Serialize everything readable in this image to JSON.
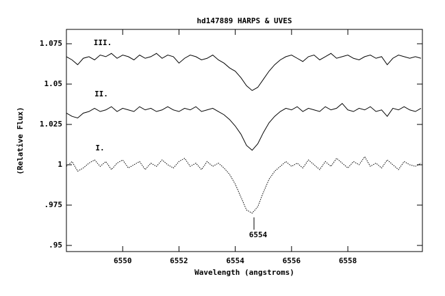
{
  "chart_data": {
    "type": "line",
    "title": "hd147889 HARPS & UVES",
    "x_label": "Wavelength (angstroms)",
    "y_label": "(Relative Flux)",
    "annotation": "6554",
    "x": [
      6548.0,
      6548.2,
      6548.4,
      6548.6,
      6548.8,
      6549.0,
      6549.2,
      6549.4,
      6549.6,
      6549.8,
      6550.0,
      6550.2,
      6550.4,
      6550.6,
      6550.8,
      6551.0,
      6551.2,
      6551.4,
      6551.6,
      6551.8,
      6552.0,
      6552.2,
      6552.4,
      6552.6,
      6552.8,
      6553.0,
      6553.2,
      6553.4,
      6553.6,
      6553.8,
      6554.0,
      6554.2,
      6554.4,
      6554.6,
      6554.8,
      6555.0,
      6555.2,
      6555.4,
      6555.6,
      6555.8,
      6556.0,
      6556.2,
      6556.4,
      6556.6,
      6556.8,
      6557.0,
      6557.2,
      6557.4,
      6557.6,
      6557.8,
      6558.0,
      6558.2,
      6558.4,
      6558.6,
      6558.8,
      6559.0,
      6559.2,
      6559.4,
      6559.6,
      6559.8,
      6560.0,
      6560.2,
      6560.4,
      6560.6
    ],
    "series": [
      {
        "name": "III.",
        "color": "#000000",
        "linestyle": "solid",
        "values": [
          1.067,
          1.065,
          1.062,
          1.066,
          1.067,
          1.065,
          1.068,
          1.067,
          1.069,
          1.066,
          1.068,
          1.067,
          1.065,
          1.068,
          1.066,
          1.067,
          1.069,
          1.066,
          1.068,
          1.067,
          1.063,
          1.066,
          1.068,
          1.067,
          1.065,
          1.066,
          1.068,
          1.065,
          1.063,
          1.06,
          1.058,
          1.054,
          1.049,
          1.046,
          1.048,
          1.053,
          1.058,
          1.062,
          1.065,
          1.067,
          1.068,
          1.066,
          1.064,
          1.067,
          1.068,
          1.065,
          1.067,
          1.069,
          1.066,
          1.067,
          1.068,
          1.066,
          1.065,
          1.067,
          1.068,
          1.066,
          1.067,
          1.062,
          1.066,
          1.068,
          1.067,
          1.066,
          1.067,
          1.066
        ]
      },
      {
        "name": "II.",
        "color": "#000000",
        "linestyle": "solid",
        "values": [
          1.032,
          1.03,
          1.029,
          1.032,
          1.033,
          1.035,
          1.033,
          1.034,
          1.036,
          1.033,
          1.035,
          1.034,
          1.033,
          1.036,
          1.034,
          1.035,
          1.033,
          1.034,
          1.036,
          1.034,
          1.033,
          1.035,
          1.034,
          1.036,
          1.033,
          1.034,
          1.035,
          1.033,
          1.031,
          1.028,
          1.024,
          1.019,
          1.012,
          1.009,
          1.013,
          1.02,
          1.026,
          1.03,
          1.033,
          1.035,
          1.034,
          1.036,
          1.033,
          1.035,
          1.034,
          1.033,
          1.036,
          1.034,
          1.035,
          1.038,
          1.034,
          1.033,
          1.035,
          1.034,
          1.036,
          1.033,
          1.034,
          1.03,
          1.035,
          1.034,
          1.036,
          1.034,
          1.033,
          1.035
        ]
      },
      {
        "name": "I.",
        "color": "#000000",
        "linestyle": "dotted",
        "values": [
          0.999,
          1.002,
          0.996,
          0.998,
          1.001,
          1.003,
          0.999,
          1.002,
          0.997,
          1.001,
          1.003,
          0.998,
          1.0,
          1.002,
          0.997,
          1.001,
          0.999,
          1.003,
          1.0,
          0.998,
          1.002,
          1.004,
          0.999,
          1.001,
          0.997,
          1.002,
          0.999,
          1.001,
          0.998,
          0.994,
          0.988,
          0.98,
          0.972,
          0.97,
          0.974,
          0.983,
          0.991,
          0.996,
          0.999,
          1.002,
          0.999,
          1.001,
          0.998,
          1.003,
          1.0,
          0.997,
          1.002,
          0.999,
          1.004,
          1.001,
          0.998,
          1.002,
          1.0,
          1.005,
          0.999,
          1.001,
          0.998,
          1.003,
          1.0,
          0.997,
          1.002,
          1.0,
          0.999,
          1.001
        ]
      }
    ],
    "xlim": [
      6548.0,
      6560.65
    ],
    "ylim": [
      0.9462,
      1.0839
    ],
    "xticks": [
      6550,
      6552,
      6554,
      6556,
      6558
    ],
    "yticks": [
      {
        "value": 0.95,
        "label": ".95"
      },
      {
        "value": 0.975,
        "label": ".975"
      },
      1,
      1.025,
      1.05,
      1.075
    ],
    "grid": false
  }
}
